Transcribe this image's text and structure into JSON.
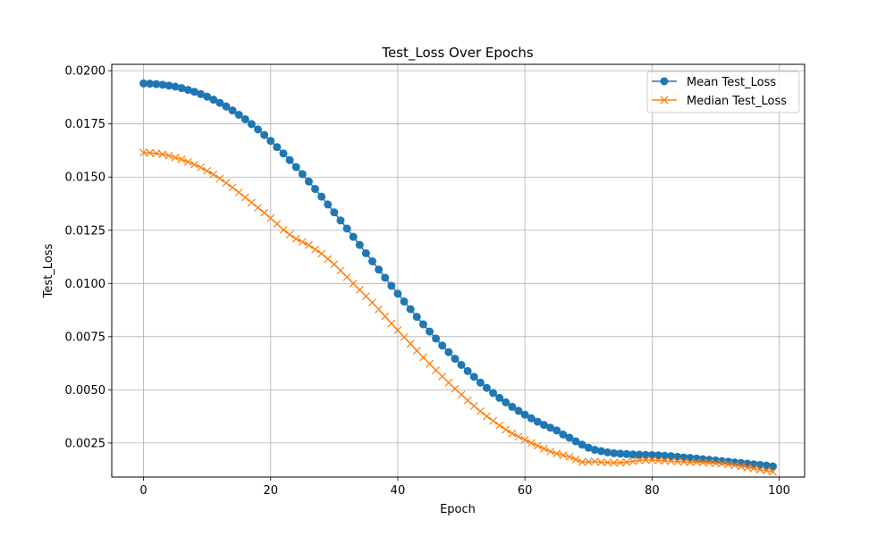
{
  "chart_data": {
    "type": "line",
    "title": "Test_Loss Over Epochs",
    "xlabel": "Epoch",
    "ylabel": "Test_Loss",
    "xlim": [
      -5,
      104
    ],
    "ylim": [
      0.0009,
      0.0203
    ],
    "xticks": [
      0,
      20,
      40,
      60,
      80,
      100
    ],
    "xtick_labels": [
      "0",
      "20",
      "40",
      "60",
      "80",
      "100"
    ],
    "yticks": [
      0.0025,
      0.005,
      0.0075,
      0.01,
      0.0125,
      0.015,
      0.0175,
      0.02
    ],
    "ytick_labels": [
      "0.0025",
      "0.0050",
      "0.0075",
      "0.0100",
      "0.0125",
      "0.0150",
      "0.0175",
      "0.0200"
    ],
    "grid": true,
    "legend_position": "top-right",
    "x": [
      0,
      1,
      2,
      3,
      4,
      5,
      6,
      7,
      8,
      9,
      10,
      11,
      12,
      13,
      14,
      15,
      16,
      17,
      18,
      19,
      20,
      21,
      22,
      23,
      24,
      25,
      26,
      27,
      28,
      29,
      30,
      31,
      32,
      33,
      34,
      35,
      36,
      37,
      38,
      39,
      40,
      41,
      42,
      43,
      44,
      45,
      46,
      47,
      48,
      49,
      50,
      51,
      52,
      53,
      54,
      55,
      56,
      57,
      58,
      59,
      60,
      61,
      62,
      63,
      64,
      65,
      66,
      67,
      68,
      69,
      70,
      71,
      72,
      73,
      74,
      75,
      76,
      77,
      78,
      79,
      80,
      81,
      82,
      83,
      84,
      85,
      86,
      87,
      88,
      89,
      90,
      91,
      92,
      93,
      94,
      95,
      96,
      97,
      98,
      99
    ],
    "series": [
      {
        "name": "Mean Test_Loss",
        "color": "#1f77b4",
        "marker": "circle",
        "values": [
          0.0194,
          0.01939,
          0.01937,
          0.01934,
          0.0193,
          0.01925,
          0.01918,
          0.0191,
          0.01901,
          0.0189,
          0.01878,
          0.01864,
          0.01849,
          0.01832,
          0.01813,
          0.01793,
          0.01772,
          0.01749,
          0.01724,
          0.01698,
          0.0167,
          0.01641,
          0.01611,
          0.0158,
          0.01547,
          0.01514,
          0.01479,
          0.01444,
          0.01408,
          0.01371,
          0.01334,
          0.01296,
          0.01258,
          0.01219,
          0.01181,
          0.01142,
          0.01104,
          0.01065,
          0.01027,
          0.00989,
          0.00952,
          0.00915,
          0.00879,
          0.00843,
          0.00808,
          0.00774,
          0.00741,
          0.00708,
          0.00677,
          0.00646,
          0.00617,
          0.00588,
          0.00561,
          0.00534,
          0.00509,
          0.00485,
          0.00462,
          0.00441,
          0.0042,
          0.00401,
          0.00383,
          0.00366,
          0.0035,
          0.00335,
          0.00322,
          0.00309,
          0.0029,
          0.00275,
          0.00258,
          0.00242,
          0.00228,
          0.00218,
          0.00212,
          0.00206,
          0.00202,
          0.002,
          0.00198,
          0.00196,
          0.00195,
          0.00194,
          0.00193,
          0.00192,
          0.0019,
          0.00188,
          0.00185,
          0.00182,
          0.0018,
          0.00177,
          0.00174,
          0.00171,
          0.00168,
          0.00165,
          0.00162,
          0.00159,
          0.00156,
          0.00153,
          0.0015,
          0.00147,
          0.00144,
          0.0014
        ]
      },
      {
        "name": "Median Test_Loss",
        "color": "#ff7f0e",
        "marker": "x",
        "values": [
          0.01615,
          0.01614,
          0.01611,
          0.01607,
          0.01601,
          0.01592,
          0.01583,
          0.01571,
          0.01559,
          0.01545,
          0.01529,
          0.01512,
          0.01493,
          0.01473,
          0.01451,
          0.01428,
          0.01404,
          0.0138,
          0.01356,
          0.01332,
          0.01307,
          0.0128,
          0.01252,
          0.0123,
          0.0121,
          0.01195,
          0.0118,
          0.0116,
          0.0114,
          0.01115,
          0.0109,
          0.0106,
          0.0103,
          0.01,
          0.0097,
          0.0094,
          0.0091,
          0.00878,
          0.00845,
          0.00812,
          0.0078,
          0.00748,
          0.00716,
          0.00684,
          0.00653,
          0.00622,
          0.00592,
          0.00563,
          0.00534,
          0.00505,
          0.00477,
          0.0045,
          0.00424,
          0.00399,
          0.00376,
          0.00354,
          0.00333,
          0.00313,
          0.00295,
          0.0028,
          0.00265,
          0.0025,
          0.00237,
          0.00223,
          0.0021,
          0.002,
          0.00192,
          0.00185,
          0.00172,
          0.0016,
          0.00162,
          0.00163,
          0.0016,
          0.00158,
          0.00157,
          0.00158,
          0.0016,
          0.00164,
          0.00168,
          0.0017,
          0.0017,
          0.00168,
          0.00166,
          0.00164,
          0.00163,
          0.00161,
          0.0016,
          0.0016,
          0.00158,
          0.00157,
          0.00155,
          0.00153,
          0.0015,
          0.00145,
          0.0014,
          0.00135,
          0.0013,
          0.00125,
          0.0012,
          0.00115
        ]
      }
    ]
  }
}
